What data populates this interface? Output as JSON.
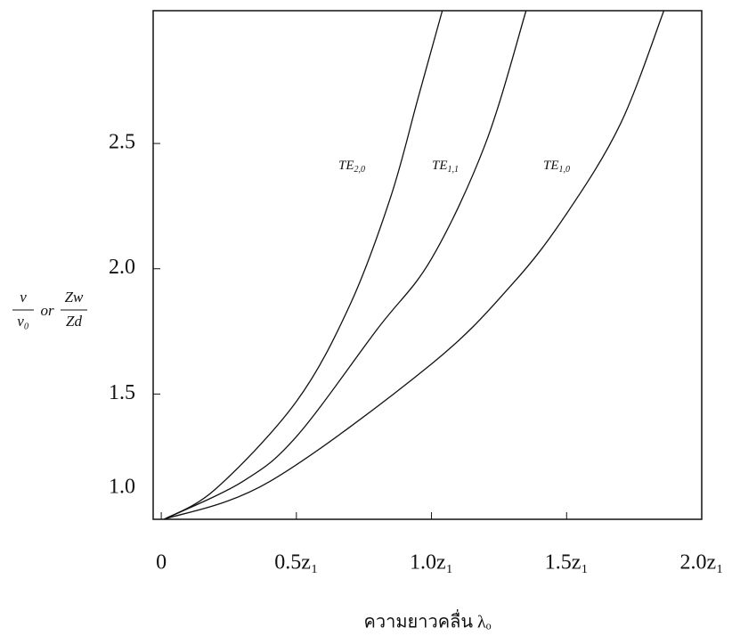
{
  "chart_data": {
    "type": "line",
    "series": [
      {
        "name": "TE2,0",
        "color": "#111111",
        "x": [
          0.01,
          0.2,
          0.5,
          0.7,
          0.85,
          0.95,
          1.04
        ],
        "values": [
          1.0,
          1.12,
          1.47,
          1.86,
          2.29,
          2.68,
          3.03
        ]
      },
      {
        "name": "TE1,1",
        "color": "#111111",
        "x": [
          0.01,
          0.3,
          0.5,
          0.8,
          1.0,
          1.2,
          1.35
        ],
        "values": [
          1.0,
          1.15,
          1.33,
          1.76,
          2.04,
          2.5,
          3.03
        ]
      },
      {
        "name": "TE1,0",
        "color": "#111111",
        "x": [
          0.01,
          0.4,
          1.0,
          1.3,
          1.5,
          1.7,
          1.86
        ],
        "values": [
          1.0,
          1.15,
          1.62,
          1.94,
          2.22,
          2.58,
          3.03
        ]
      }
    ],
    "xlim": [
      -0.03,
      2.0
    ],
    "ylim": [
      1.0,
      3.03
    ],
    "xticks": [
      0,
      {
        "value": 0.5,
        "label": "0.5z₁"
      },
      {
        "value": 1.0,
        "label": "1.0z₁"
      },
      {
        "value": 1.5,
        "label": "1.5z₁"
      },
      {
        "value": 2.0,
        "label": "2.0z₁"
      }
    ],
    "yticks": [
      {
        "value": 1.0,
        "label": "1.0"
      },
      1.5,
      {
        "value": 2.0,
        "label": "2.0"
      },
      2.5
    ],
    "y_label": {
      "num1": "ν",
      "den1": "ν₀",
      "joiner": "or",
      "num2": "Zw",
      "den2": "Zd"
    },
    "x_label": "ความยาวคลื่น λₒ"
  }
}
